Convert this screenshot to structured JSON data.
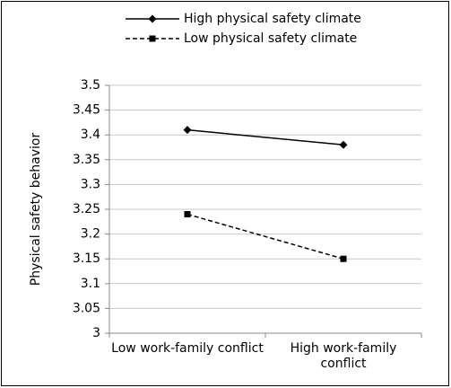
{
  "chart_data": {
    "type": "line",
    "y_label": "Physical safety behavior",
    "categories": [
      "Low work-family conflict",
      "High work-family conflict"
    ],
    "series": [
      {
        "name": "High physical safety climate",
        "color": "#000000",
        "dashed": false,
        "marker": "diamond",
        "values": [
          3.41,
          3.38
        ]
      },
      {
        "name": "Low physical safety climate",
        "color": "#000000",
        "dashed": true,
        "marker": "square",
        "values": [
          3.24,
          3.15
        ]
      }
    ],
    "ylim": [
      3,
      3.5
    ],
    "yticks": [
      3,
      3.05,
      3.1,
      3.15,
      3.2,
      3.25,
      3.3,
      3.35,
      3.4,
      3.45,
      3.5
    ],
    "grid": true,
    "legend": "top"
  }
}
